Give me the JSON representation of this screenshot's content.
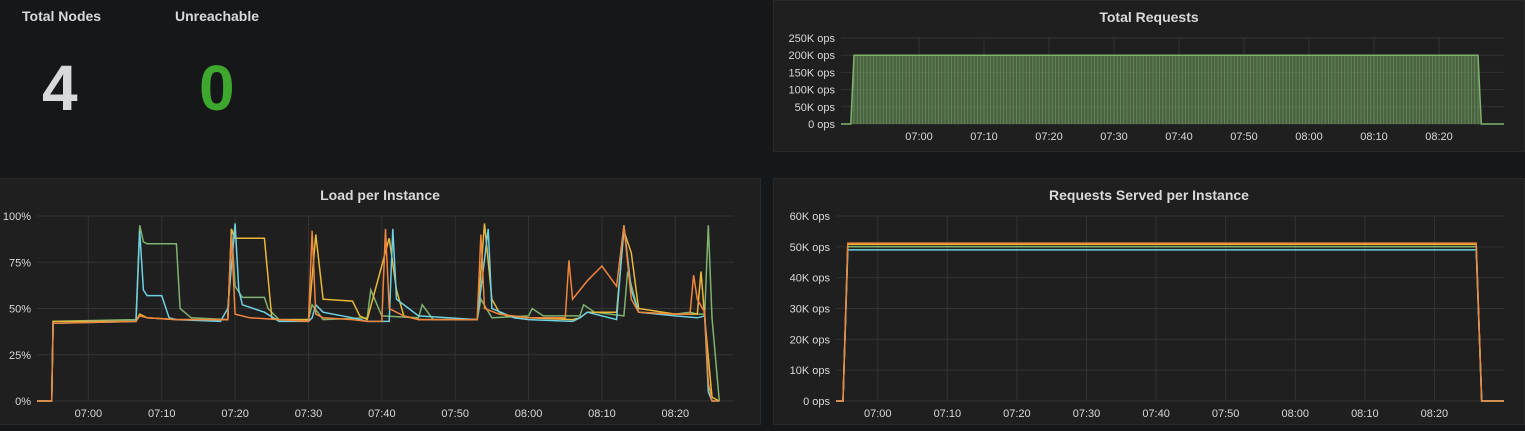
{
  "stats": {
    "total_nodes": {
      "title": "Total Nodes",
      "value": "4",
      "color": "#d8d9da"
    },
    "unreachable": {
      "title": "Unreachable",
      "value": "0",
      "color": "#3ea72d"
    }
  },
  "colors": {
    "green": "#7eb26d",
    "yellow": "#eab839",
    "blue": "#6ed0e0",
    "orange": "#ef843c",
    "grid": "#333333",
    "text": "#d8d9da"
  },
  "panels": {
    "total_requests": {
      "title": "Total Requests"
    },
    "load_per_instance": {
      "title": "Load per Instance"
    },
    "requests_served": {
      "title": "Requests Served per Instance"
    }
  },
  "chart_data": [
    {
      "id": "total_requests",
      "type": "area",
      "title": "Total Requests",
      "xticks": [
        "07:00",
        "07:10",
        "07:20",
        "07:30",
        "07:40",
        "07:50",
        "08:00",
        "08:10",
        "08:20"
      ],
      "yticks": [
        "0 ops",
        "50K ops",
        "100K ops",
        "150K ops",
        "200K ops",
        "250K ops"
      ],
      "ylim": [
        0,
        250000
      ],
      "xlim_minutes": [
        -12,
        90
      ],
      "grid": true,
      "series": [
        {
          "color": "#7eb26d",
          "x": [
            -12,
            -10.5,
            -10,
            86,
            86.5,
            88,
            90
          ],
          "y": [
            0,
            0,
            200000,
            200000,
            0,
            0,
            0
          ]
        }
      ]
    },
    {
      "id": "load_per_instance",
      "type": "line",
      "title": "Load per Instance",
      "xticks": [
        "07:00",
        "07:10",
        "07:20",
        "07:30",
        "07:40",
        "07:50",
        "08:00",
        "08:10",
        "08:20"
      ],
      "yticks": [
        "0%",
        "25%",
        "50%",
        "75%",
        "100%"
      ],
      "ylim": [
        0,
        100
      ],
      "xlim_minutes": [
        -7,
        88
      ],
      "grid": true,
      "series": [
        {
          "color": "#7eb26d",
          "x": [
            -7,
            -5,
            -4.8,
            6.5,
            7,
            7.5,
            8,
            12,
            12.5,
            14,
            19,
            19.5,
            20,
            21,
            24,
            24.5,
            26,
            30,
            30.5,
            32,
            38,
            38.5,
            40,
            45,
            45.5,
            47,
            53,
            53.5,
            55,
            60,
            60.5,
            62,
            67,
            67.5,
            69,
            73,
            73.5,
            75,
            80,
            82,
            83,
            84,
            84.5,
            85,
            86
          ],
          "y": [
            0,
            0,
            43,
            44,
            95,
            86,
            85,
            85,
            50,
            45,
            44,
            93,
            62,
            56,
            56,
            50,
            44,
            44,
            52,
            44,
            45,
            60,
            46,
            45,
            52,
            44,
            44,
            55,
            45,
            46,
            50,
            46,
            46,
            52,
            48,
            46,
            70,
            48,
            47,
            48,
            47,
            47,
            95,
            45,
            0
          ]
        },
        {
          "color": "#eab839",
          "x": [
            -7,
            -5,
            -4.8,
            6.5,
            7,
            8,
            12,
            19,
            19.5,
            20,
            24,
            25,
            26,
            30,
            31,
            32,
            36,
            37,
            38,
            41,
            42,
            43,
            45,
            53,
            54,
            55,
            56,
            57,
            60,
            66,
            67,
            68,
            72,
            73,
            74,
            75,
            80,
            83,
            83.5,
            84,
            85,
            86
          ],
          "y": [
            0,
            0,
            43,
            43,
            47,
            45,
            44,
            44,
            93,
            88,
            88,
            45,
            44,
            44,
            90,
            55,
            54,
            46,
            44,
            88,
            60,
            46,
            44,
            44,
            96,
            55,
            48,
            46,
            45,
            44,
            45,
            48,
            48,
            92,
            80,
            50,
            47,
            47,
            70,
            45,
            2,
            0
          ]
        },
        {
          "color": "#6ed0e0",
          "x": [
            -7,
            -5,
            -4.8,
            6.5,
            7,
            7.5,
            8,
            10,
            11,
            12,
            18,
            19,
            20,
            20.5,
            21,
            24,
            26,
            30,
            30.5,
            31,
            32,
            36,
            38,
            41,
            41.5,
            42,
            45,
            53,
            54.5,
            55,
            58,
            60,
            66,
            67,
            68,
            72,
            73,
            74,
            75,
            80,
            83,
            84,
            84.5,
            85,
            86
          ],
          "y": [
            0,
            0,
            42,
            43,
            92,
            60,
            57,
            57,
            45,
            44,
            43,
            50,
            96,
            60,
            52,
            48,
            43,
            43,
            45,
            52,
            48,
            45,
            43,
            43,
            93,
            55,
            46,
            44,
            93,
            50,
            45,
            44,
            43,
            45,
            48,
            44,
            95,
            60,
            48,
            46,
            45,
            46,
            5,
            0,
            0
          ]
        },
        {
          "color": "#ef843c",
          "x": [
            -7,
            -5,
            -4.8,
            6.5,
            7,
            8,
            12,
            19,
            19.5,
            20,
            22,
            26,
            30,
            30.5,
            31,
            32,
            36,
            38,
            40,
            40.5,
            41,
            43,
            45,
            50,
            53,
            53.5,
            54,
            56,
            60,
            65,
            65.5,
            66,
            67,
            68,
            70,
            72,
            73,
            74,
            75,
            80,
            82,
            82.5,
            83,
            84,
            84.5,
            85,
            86
          ],
          "y": [
            0,
            0,
            42,
            43,
            46,
            45,
            44,
            44,
            90,
            47,
            45,
            44,
            43,
            92,
            47,
            45,
            44,
            43,
            43,
            93,
            50,
            46,
            44,
            44,
            44,
            90,
            50,
            47,
            45,
            45,
            76,
            55,
            60,
            65,
            73,
            62,
            95,
            55,
            48,
            47,
            47,
            68,
            55,
            48,
            10,
            0,
            0
          ]
        }
      ]
    },
    {
      "id": "requests_served",
      "type": "line",
      "title": "Requests Served per Instance",
      "xticks": [
        "07:00",
        "07:10",
        "07:20",
        "07:30",
        "07:40",
        "07:50",
        "08:00",
        "08:10",
        "08:20"
      ],
      "yticks": [
        "0 ops",
        "10K ops",
        "20K ops",
        "30K ops",
        "40K ops",
        "50K ops",
        "60K ops"
      ],
      "ylim": [
        0,
        60000
      ],
      "xlim_minutes": [
        -6,
        90
      ],
      "grid": true,
      "series": [
        {
          "color": "#7eb26d",
          "x": [
            -6,
            -5,
            -4.3,
            86,
            86.8,
            90
          ],
          "y": [
            0,
            0,
            50000,
            50000,
            0,
            0
          ]
        },
        {
          "color": "#eab839",
          "x": [
            -6,
            -5,
            -4.3,
            86,
            86.8,
            90
          ],
          "y": [
            0,
            0,
            50800,
            50800,
            0,
            0
          ]
        },
        {
          "color": "#6ed0e0",
          "x": [
            -6,
            -5,
            -4.3,
            86,
            86.8,
            90
          ],
          "y": [
            0,
            0,
            49000,
            49000,
            0,
            0
          ]
        },
        {
          "color": "#ef843c",
          "x": [
            -6,
            -5,
            -4.3,
            86,
            86.8,
            90
          ],
          "y": [
            0,
            0,
            51200,
            51200,
            0,
            0
          ]
        }
      ]
    }
  ]
}
